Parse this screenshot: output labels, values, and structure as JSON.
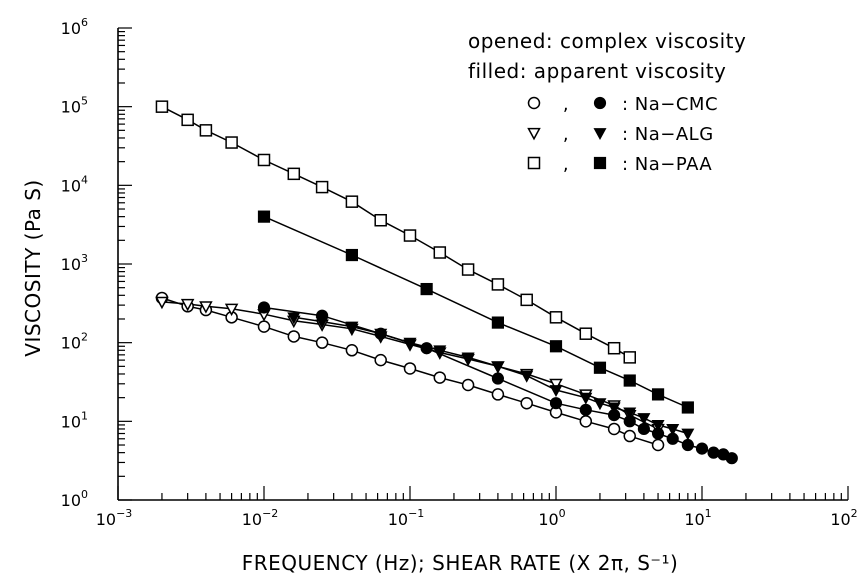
{
  "chart_data": {
    "type": "scatter",
    "title": "",
    "xlabel": "FREQUENCY (Hz);  SHEAR RATE (X 2π, S⁻¹)",
    "ylabel": "VISCOSITY (Pa S)",
    "x_scale": "log",
    "y_scale": "log",
    "xlim": [
      0.001,
      100
    ],
    "ylim": [
      1,
      1000000
    ],
    "x_ticks": [
      {
        "value": 0.001,
        "base": "10",
        "exp": "−3"
      },
      {
        "value": 0.01,
        "base": "10",
        "exp": "−2"
      },
      {
        "value": 0.1,
        "base": "10",
        "exp": "−1"
      },
      {
        "value": 1,
        "base": "10",
        "exp": "0"
      },
      {
        "value": 10,
        "base": "10",
        "exp": "1"
      },
      {
        "value": 100,
        "base": "10",
        "exp": "2"
      }
    ],
    "y_ticks": [
      {
        "value": 1,
        "base": "10",
        "exp": "0"
      },
      {
        "value": 10,
        "base": "10",
        "exp": "1"
      },
      {
        "value": 100,
        "base": "10",
        "exp": "2"
      },
      {
        "value": 1000,
        "base": "10",
        "exp": "3"
      },
      {
        "value": 10000,
        "base": "10",
        "exp": "4"
      },
      {
        "value": 100000,
        "base": "10",
        "exp": "5"
      },
      {
        "value": 1000000,
        "base": "10",
        "exp": "6"
      }
    ],
    "grid": false,
    "legend_position": "top-right",
    "notes": [
      "opened: complex viscosity",
      "filled: apparent viscosity"
    ],
    "legend": [
      {
        "label": ":  Na−CMC",
        "open_marker": "circle",
        "filled_marker": "circle"
      },
      {
        "label": ":  Na−ALG",
        "open_marker": "triangle-down",
        "filled_marker": "triangle-down"
      },
      {
        "label": ":  Na−PAA",
        "open_marker": "square",
        "filled_marker": "square"
      }
    ],
    "legend_separator": ",",
    "series": [
      {
        "material": "Na-CMC",
        "kind": "complex viscosity",
        "marker": "circle",
        "filled": false,
        "x": [
          0.002,
          0.003,
          0.004,
          0.006,
          0.01,
          0.016,
          0.025,
          0.04,
          0.063,
          0.1,
          0.16,
          0.25,
          0.4,
          0.63,
          1,
          1.6,
          2.5,
          3.2,
          5
        ],
        "y": [
          370,
          290,
          260,
          210,
          160,
          120,
          100,
          80,
          60,
          47,
          36,
          29,
          22,
          17,
          13,
          10,
          8,
          6.5,
          5
        ]
      },
      {
        "material": "Na-ALG",
        "kind": "complex viscosity",
        "marker": "triangle-down",
        "filled": false,
        "x": [
          0.002,
          0.003,
          0.004,
          0.006,
          0.01,
          0.016,
          0.025,
          0.04,
          0.063,
          0.1,
          0.16,
          0.25,
          0.4,
          0.63,
          1,
          1.6,
          2.5,
          3.2,
          5
        ],
        "y": [
          330,
          310,
          290,
          270,
          230,
          190,
          170,
          150,
          120,
          95,
          75,
          62,
          50,
          40,
          30,
          22,
          16,
          12,
          8
        ]
      },
      {
        "material": "Na-PAA",
        "kind": "complex viscosity",
        "marker": "square",
        "filled": false,
        "x": [
          0.002,
          0.003,
          0.004,
          0.006,
          0.01,
          0.016,
          0.025,
          0.04,
          0.063,
          0.1,
          0.16,
          0.25,
          0.4,
          0.63,
          1,
          1.6,
          2.5,
          3.2
        ],
        "y": [
          100000,
          68000,
          50000,
          35000,
          21000,
          14000,
          9500,
          6200,
          3600,
          2300,
          1400,
          850,
          550,
          350,
          210,
          130,
          85,
          65
        ]
      },
      {
        "material": "Na-CMC",
        "kind": "apparent viscosity",
        "marker": "circle",
        "filled": true,
        "x": [
          0.01,
          0.025,
          0.063,
          0.13,
          0.4,
          1,
          1.6,
          2.5,
          3.2,
          4,
          5,
          6.3,
          8,
          10,
          12,
          14,
          16
        ],
        "y": [
          280,
          220,
          130,
          85,
          35,
          17,
          14,
          12,
          10,
          8,
          7,
          6,
          5,
          4.5,
          4,
          3.8,
          3.4
        ]
      },
      {
        "material": "Na-ALG",
        "kind": "apparent viscosity",
        "marker": "triangle-down",
        "filled": true,
        "x": [
          0.016,
          0.025,
          0.04,
          0.063,
          0.1,
          0.16,
          0.25,
          0.4,
          0.63,
          1,
          1.6,
          2,
          2.5,
          3.2,
          4,
          5,
          6.3,
          8
        ],
        "y": [
          210,
          185,
          160,
          130,
          100,
          80,
          65,
          50,
          38,
          25,
          20,
          17,
          15,
          13,
          11,
          9,
          8,
          7
        ]
      },
      {
        "material": "Na-PAA",
        "kind": "apparent viscosity",
        "marker": "square",
        "filled": true,
        "x": [
          0.01,
          0.04,
          0.13,
          0.4,
          1,
          2,
          3.2,
          5,
          8
        ],
        "y": [
          4000,
          1300,
          480,
          180,
          90,
          48,
          33,
          22,
          15
        ]
      }
    ]
  }
}
